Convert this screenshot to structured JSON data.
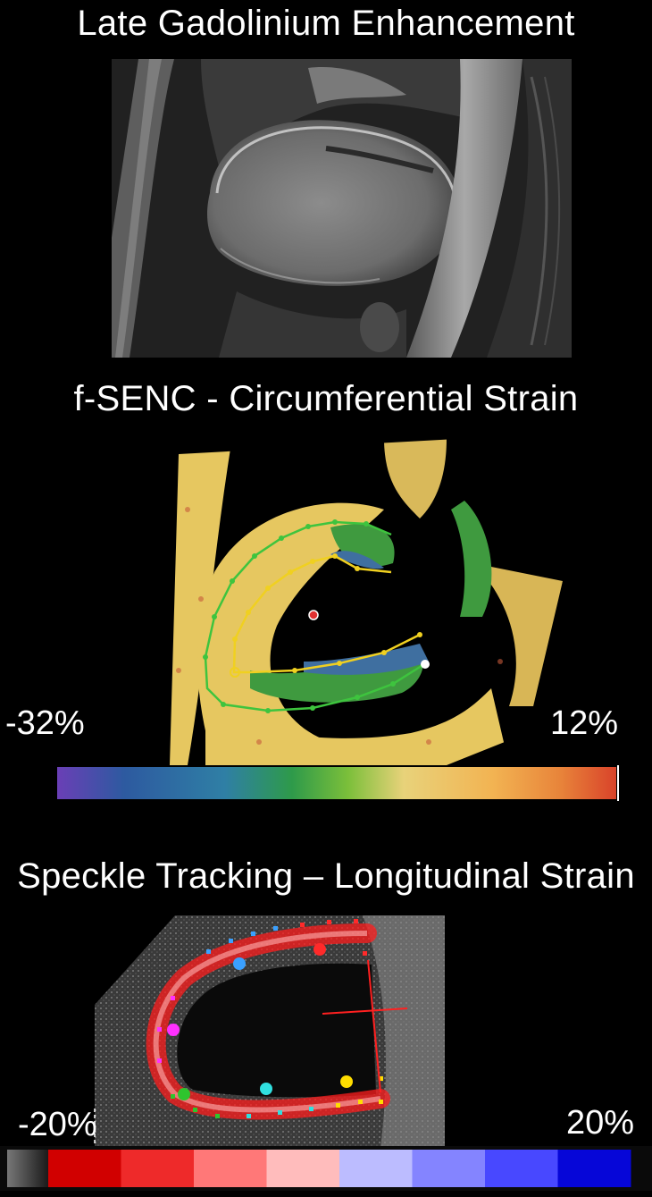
{
  "sections": {
    "lge": {
      "title": "Late Gadolinium Enhancement"
    },
    "fsenc": {
      "title": "f-SENC - Circumferential Strain",
      "scale_min": "-32%",
      "scale_max": "12%",
      "colorbar_colors": [
        "#6a3fb6",
        "#2d5aa0",
        "#2f7fa5",
        "#2e9a4a",
        "#7bbf3a",
        "#e8d27a",
        "#f2b352",
        "#e8843a",
        "#d9432a"
      ]
    },
    "speckle": {
      "title": "Speckle Tracking – Longitudinal Strain",
      "scale_min": "-20%",
      "scale_max": "20%",
      "colorbar_colors": [
        "#d10000",
        "#ee2a2a",
        "#ff7878",
        "#ffbcbc",
        "#bcbcff",
        "#8484ff",
        "#4848ff",
        "#0606d8"
      ]
    }
  },
  "colors": {
    "epicardial_contour": "#3ec43e",
    "endocardial_contour": "#f0d020",
    "center_marker": "#e03030",
    "strain_overlay": "#ff1e1e"
  }
}
